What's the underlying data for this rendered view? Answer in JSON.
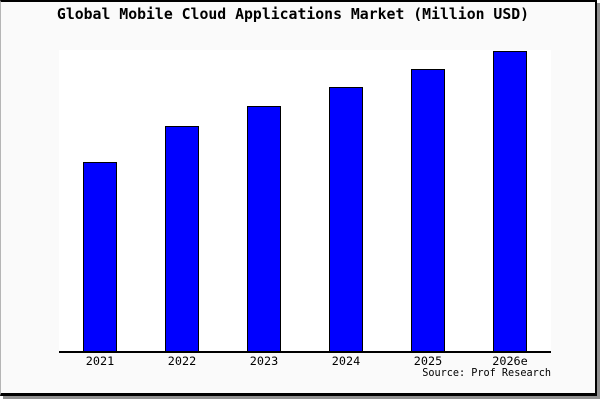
{
  "title": "Global Mobile Cloud Applications Market (Million USD)",
  "source_credit": "Source: Prof Research",
  "colors": {
    "bar_fill": "#0000ff",
    "bar_border": "#000000",
    "background": "#fafafa",
    "plot_background": "#ffffff",
    "frame_border": "#000000",
    "frame_shadow": "#909090",
    "axis": "#000000"
  },
  "chart_data": {
    "type": "bar",
    "title": "Global Mobile Cloud Applications Market (Million USD)",
    "categories": [
      "2021",
      "2022",
      "2023",
      "2024",
      "2025",
      "2026e"
    ],
    "values": [
      63,
      75,
      81.5,
      88,
      94,
      100
    ],
    "values_estimated": true,
    "units": "Million USD",
    "xlabel": "",
    "ylabel": "",
    "ylim": [
      0,
      100
    ],
    "grid": false,
    "legend": false,
    "y_axis_shown": false,
    "source": "Source: Prof Research"
  }
}
